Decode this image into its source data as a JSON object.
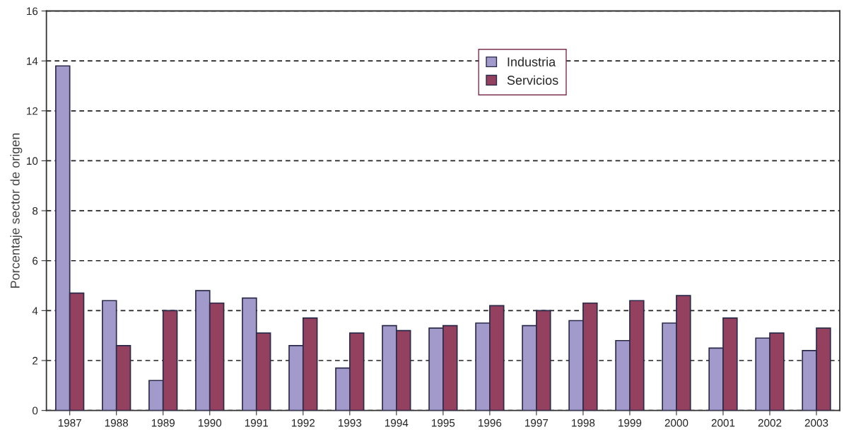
{
  "chart_data": {
    "type": "bar",
    "ylabel": "Porcentaje sector de origen",
    "categories": [
      "1987",
      "1988",
      "1989",
      "1990",
      "1991",
      "1992",
      "1993",
      "1994",
      "1995",
      "1996",
      "1997",
      "1998",
      "1999",
      "2000",
      "2001",
      "2002",
      "2003"
    ],
    "series": [
      {
        "name": "Industria",
        "color": "#a29acb",
        "values": [
          13.8,
          4.4,
          1.2,
          4.8,
          4.5,
          2.6,
          1.7,
          3.4,
          3.3,
          3.5,
          3.4,
          3.6,
          2.8,
          3.5,
          2.5,
          2.9,
          2.4
        ]
      },
      {
        "name": "Servicios",
        "color": "#94405f",
        "values": [
          4.7,
          2.6,
          4.0,
          4.3,
          3.1,
          3.7,
          3.1,
          3.2,
          3.4,
          4.2,
          4.0,
          4.3,
          4.4,
          4.6,
          3.7,
          3.1,
          3.3
        ]
      }
    ],
    "ylim": [
      0,
      16
    ],
    "yticks": [
      0,
      2,
      4,
      6,
      8,
      10,
      12,
      14,
      16
    ],
    "grid": "y",
    "legend": "top"
  }
}
